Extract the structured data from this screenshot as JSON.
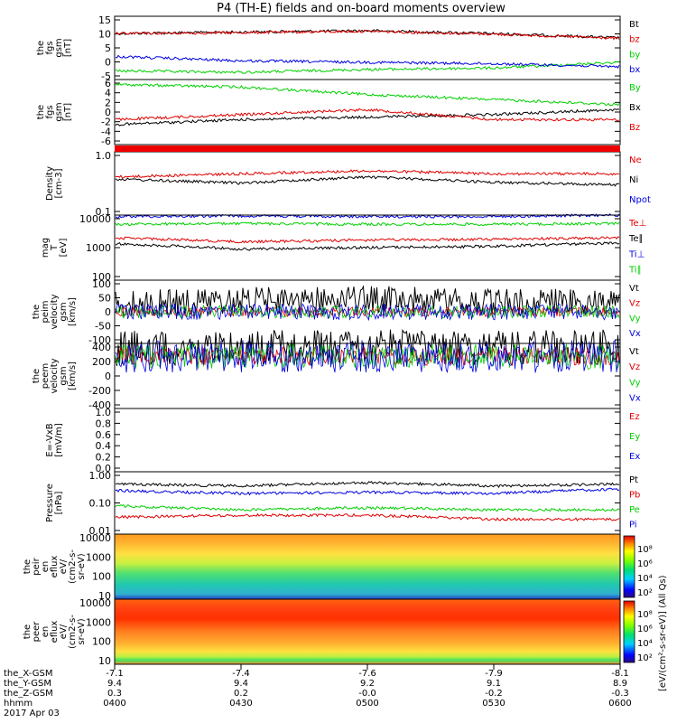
{
  "title": "P4 (TH-E) fields and on-board moments overview",
  "colors": {
    "black": "#000000",
    "red": "#e00000",
    "green": "#00d000",
    "blue": "#0000e0"
  },
  "panels": [
    {
      "id": "p1",
      "ylabel": [
        "the",
        "fgs",
        "gsm",
        "[nT]"
      ],
      "yticks": [
        "15",
        "10",
        "5",
        "0",
        "-5"
      ],
      "legend": [
        {
          "text": "Bt",
          "color": "#000000"
        },
        {
          "text": "bz",
          "color": "#e00000"
        },
        {
          "text": "by",
          "color": "#00d000"
        },
        {
          "text": "bx",
          "color": "#0000e0"
        }
      ]
    },
    {
      "id": "p2",
      "ylabel": [
        "the",
        "fgs",
        "gsm",
        "[nT]"
      ],
      "yticks": [
        "6",
        "4",
        "2",
        "0",
        "-2",
        "-4",
        "-6"
      ],
      "legend": [
        {
          "text": "By",
          "color": "#00d000"
        },
        {
          "text": "Bx",
          "color": "#000000"
        },
        {
          "text": "Bz",
          "color": "#e00000"
        }
      ]
    },
    {
      "id": "p3",
      "ylabel": [
        "Density",
        "[cm-3]"
      ],
      "yticks": [
        "1.0",
        "0.1"
      ],
      "legend": [
        {
          "text": "Ne",
          "color": "#e00000"
        },
        {
          "text": "Ni",
          "color": "#000000"
        },
        {
          "text": "Npot",
          "color": "#0000e0"
        }
      ]
    },
    {
      "id": "p4",
      "ylabel": [
        "mag",
        "T",
        "[eV]"
      ],
      "yticks": [
        "10000",
        "1000",
        "100"
      ],
      "legend": [
        {
          "text": "Te⊥",
          "color": "#e00000"
        },
        {
          "text": "Te∥",
          "color": "#000000"
        },
        {
          "text": "Ti⊥",
          "color": "#0000e0"
        },
        {
          "text": "Ti∥",
          "color": "#00d000"
        }
      ]
    },
    {
      "id": "p5",
      "ylabel": [
        "the",
        "peim",
        "velocity",
        "gsm",
        "[km/s]"
      ],
      "yticks": [
        "100",
        "50",
        "0",
        "-50",
        "-100"
      ],
      "legend": [
        {
          "text": "Vt",
          "color": "#000000"
        },
        {
          "text": "Vz",
          "color": "#e00000"
        },
        {
          "text": "Vy",
          "color": "#00d000"
        },
        {
          "text": "Vx",
          "color": "#0000e0"
        }
      ]
    },
    {
      "id": "p6",
      "ylabel": [
        "the",
        "peem",
        "velocity",
        "gsm",
        "[km/s]"
      ],
      "yticks": [
        "400",
        "200",
        "0",
        "-200",
        "-400"
      ],
      "legend": [
        {
          "text": "Vt",
          "color": "#000000"
        },
        {
          "text": "Vz",
          "color": "#e00000"
        },
        {
          "text": "Vy",
          "color": "#00d000"
        },
        {
          "text": "Vx",
          "color": "#0000e0"
        }
      ]
    },
    {
      "id": "p7",
      "ylabel": [
        "E=-VxB",
        "[mV/m]"
      ],
      "yticks": [
        "1.0",
        "0.8",
        "0.6",
        "0.4",
        "0.2",
        "0.0"
      ],
      "legend": [
        {
          "text": "Ez",
          "color": "#e00000"
        },
        {
          "text": "Ey",
          "color": "#00d000"
        },
        {
          "text": "Ex",
          "color": "#0000e0"
        }
      ]
    },
    {
      "id": "p8",
      "ylabel": [
        "Pressure",
        "[nPa]"
      ],
      "yticks": [
        "1.00",
        "0.10",
        "0.01"
      ],
      "legend": [
        {
          "text": "Pt",
          "color": "#000000"
        },
        {
          "text": "Pb",
          "color": "#e00000"
        },
        {
          "text": "Pe",
          "color": "#00d000"
        },
        {
          "text": "Pi",
          "color": "#0000e0"
        }
      ]
    },
    {
      "id": "p9",
      "ylabel": [
        "the",
        "peir",
        "en",
        "eflux",
        "eV/",
        "(cm2-s-",
        "sr-eV)"
      ],
      "yticks": [
        "10000",
        "1000",
        "100",
        "10"
      ]
    },
    {
      "id": "p10",
      "ylabel": [
        "the",
        "peer",
        "en",
        "eflux",
        "eV/",
        "(cm2-s-",
        "sr-eV)"
      ],
      "yticks": [
        "10000",
        "1000",
        "100",
        "10"
      ]
    }
  ],
  "colorbar": {
    "label": "[eV/(cm²-s-sr-eV)] (All Qs)",
    "ticks_top": [
      "10⁸",
      "10⁶",
      "10⁴",
      "10²"
    ],
    "ticks_bottom": [
      "10⁸",
      "10⁶",
      "10⁴",
      "10²"
    ]
  },
  "footer": {
    "rows": [
      {
        "label": "the_X-GSM",
        "values": [
          "-7.1",
          "-7.4",
          "-7.6",
          "-7.9",
          "-8.1"
        ]
      },
      {
        "label": "the_Y-GSM",
        "values": [
          "9.4",
          "9.4",
          "9.2",
          "9.1",
          "8.9"
        ]
      },
      {
        "label": "the_Z-GSM",
        "values": [
          "0.3",
          "0.2",
          "-0.0",
          "-0.2",
          "-0.3"
        ]
      },
      {
        "label": "hhmm",
        "values": [
          "0400",
          "0430",
          "0500",
          "0530",
          "0600"
        ]
      }
    ],
    "date": "2017 Apr 03"
  },
  "chart_data": {
    "type": "line",
    "x": [
      "0400",
      "0430",
      "0500",
      "0530",
      "0600"
    ],
    "panels": [
      {
        "series": [
          {
            "name": "Bt",
            "approx": [
              10,
              10.5,
              11,
              10,
              8.5
            ]
          },
          {
            "name": "bz",
            "approx": [
              10,
              10.3,
              10.8,
              9.8,
              8.3
            ]
          },
          {
            "name": "by",
            "approx": [
              -3,
              -3.5,
              -2.5,
              -2,
              0
            ]
          },
          {
            "name": "bx",
            "approx": [
              2,
              0.5,
              0,
              -0.5,
              -1.5
            ]
          }
        ],
        "ylim": [
          -6,
          16
        ]
      },
      {
        "series": [
          {
            "name": "By",
            "approx": [
              5,
              4.5,
              3,
              2,
              1
            ]
          },
          {
            "name": "Bx",
            "approx": [
              -3,
              -2,
              -1.5,
              -1,
              0
            ]
          },
          {
            "name": "Bz",
            "approx": [
              -2,
              -1,
              0,
              -2,
              -2
            ]
          }
        ],
        "ylim": [
          -7,
          6
        ]
      },
      {
        "series": [
          {
            "name": "Ne",
            "approx": [
              0.4,
              0.45,
              0.5,
              0.45,
              0.45
            ]
          },
          {
            "name": "Ni",
            "approx": [
              0.37,
              0.32,
              0.4,
              0.33,
              0.3
            ]
          }
        ],
        "ylim": [
          0.1,
          1.0
        ],
        "log": true
      },
      {
        "series": [
          {
            "name": "Ti⊥",
            "approx": [
              9000,
              9500,
              9000,
              9000,
              10000
            ]
          },
          {
            "name": "Ti∥",
            "approx": [
              5200,
              5500,
              5200,
              5200,
              5500
            ]
          },
          {
            "name": "Te⊥",
            "approx": [
              2000,
              1500,
              1700,
              1800,
              2000
            ]
          },
          {
            "name": "Te∥",
            "approx": [
              1300,
              900,
              1000,
              1100,
              1400
            ]
          }
        ],
        "ylim": [
          100,
          10000
        ],
        "log": true
      },
      {
        "series": [
          {
            "name": "Vt",
            "approx": [
              25,
              35,
              40,
              30,
              30
            ]
          }
        ],
        "ylim": [
          -100,
          100
        ]
      },
      {
        "series": [
          {
            "name": "Vt",
            "approx": [
              60,
              70,
              70,
              60,
              70
            ]
          }
        ],
        "ylim": [
          -400,
          100
        ]
      },
      {
        "series": [],
        "ylim": [
          0,
          1
        ]
      },
      {
        "series": [
          {
            "name": "Pt",
            "approx": [
              0.4,
              0.35,
              0.45,
              0.35,
              0.4
            ]
          },
          {
            "name": "Pi",
            "approx": [
              0.25,
              0.2,
              0.22,
              0.2,
              0.28
            ]
          },
          {
            "name": "Pe",
            "approx": [
              0.08,
              0.06,
              0.07,
              0.06,
              0.06
            ]
          },
          {
            "name": "Pb",
            "approx": [
              0.035,
              0.04,
              0.04,
              0.03,
              0.03
            ]
          }
        ],
        "ylim": [
          0.01,
          1.0
        ],
        "log": true
      }
    ],
    "spectrograms": [
      {
        "name": "peir",
        "ylim": [
          10,
          10000
        ],
        "log": true
      },
      {
        "name": "peer",
        "ylim": [
          10,
          20000
        ],
        "log": true
      }
    ]
  }
}
